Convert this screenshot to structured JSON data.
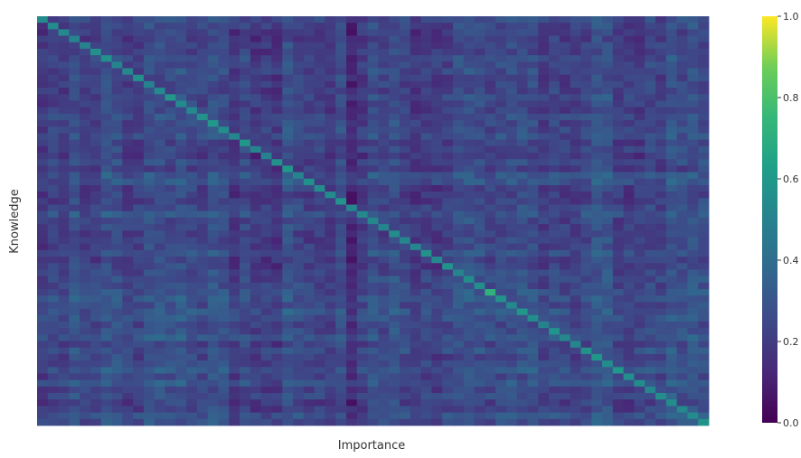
{
  "chart_data": {
    "type": "heatmap",
    "title": "",
    "xlabel": "Importance",
    "ylabel": "Knowledge",
    "rows": 63,
    "cols": 63,
    "diagonal_value_range": [
      0.5,
      0.72
    ],
    "off_diagonal_value_range": [
      0.05,
      0.45
    ],
    "colormap": "viridis",
    "colorbar": {
      "min": 0.0,
      "max": 1.0,
      "ticks": [
        0.0,
        0.2,
        0.4,
        0.6,
        0.8,
        1.0
      ],
      "tick_labels": [
        "0.0",
        "0.2",
        "0.4",
        "0.6",
        "0.8",
        "1.0"
      ]
    },
    "x_tick_labels": [],
    "y_tick_labels": [],
    "grid": false
  }
}
